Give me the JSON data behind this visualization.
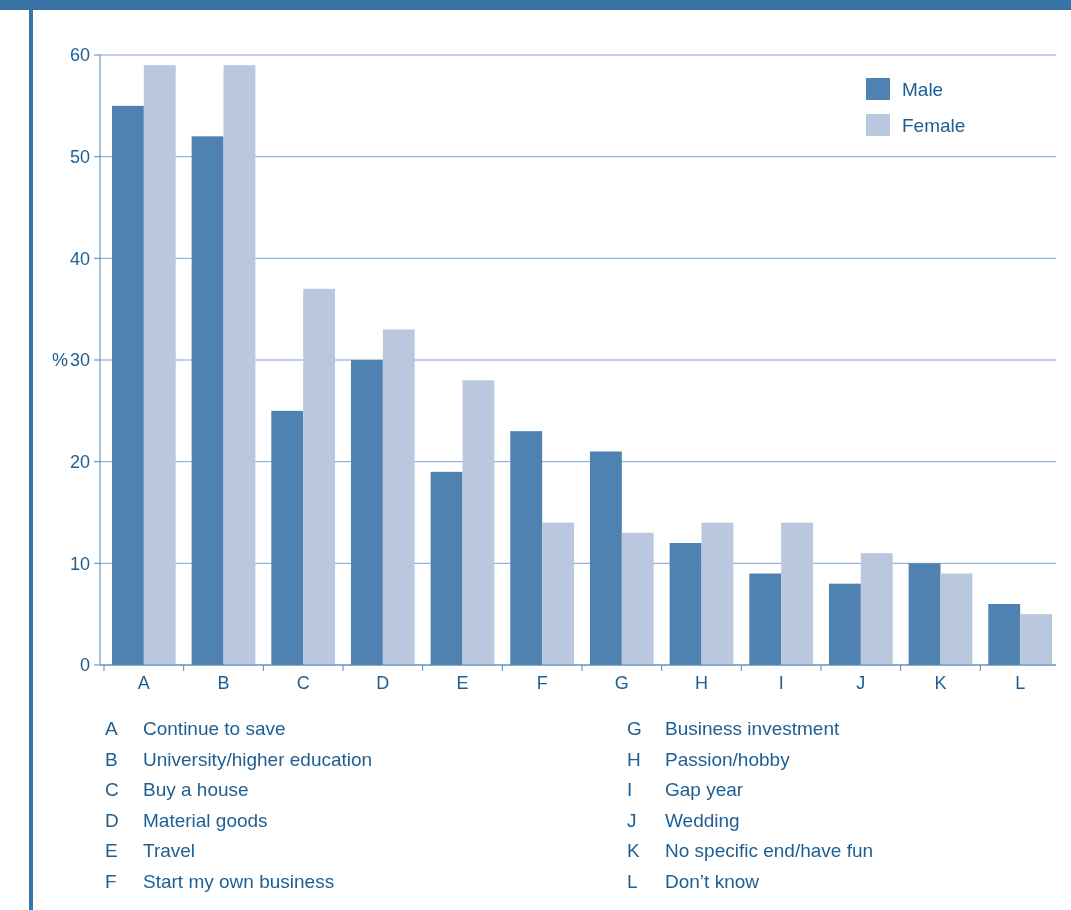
{
  "chart_data": {
    "type": "bar",
    "ylabel": "%",
    "categories": [
      "A",
      "B",
      "C",
      "D",
      "E",
      "F",
      "G",
      "H",
      "I",
      "J",
      "K",
      "L"
    ],
    "series": [
      {
        "name": "Male",
        "color": "#4f82b1",
        "values": [
          55,
          52,
          25,
          30,
          19,
          23,
          21,
          12,
          9,
          8,
          10,
          6
        ]
      },
      {
        "name": "Female",
        "color": "#b9c8df",
        "values": [
          59,
          59,
          37,
          33,
          28,
          14,
          13,
          14,
          14,
          11,
          9,
          5
        ]
      }
    ],
    "ylim": [
      0,
      60
    ],
    "yticks": [
      0,
      10,
      20,
      {
        "value": 30,
        "label": "30"
      },
      40,
      50,
      60
    ],
    "grid": "y",
    "legend": "top right",
    "annotations": [
      "A Continue to save",
      "B University/higher education",
      "C Buy a house",
      "D Material goods",
      "E Travel",
      "F Start my own business",
      "G Business investment",
      "H Passion/hobby",
      "I Gap year",
      "J Wedding",
      "K No specific end/have fun",
      "L Don’t know"
    ]
  }
}
